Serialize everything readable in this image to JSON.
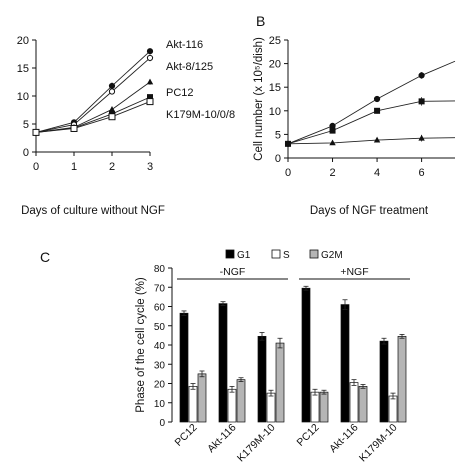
{
  "panels": {
    "a": {
      "letter": ""
    },
    "b": {
      "letter": "B"
    },
    "c": {
      "letter": "C"
    }
  },
  "chart_data": [
    {
      "type": "line",
      "panel": "A",
      "xlabel": "Days of culture without NGF",
      "ylabel": "",
      "x": [
        0,
        1,
        2,
        3
      ],
      "xlim": [
        0,
        3
      ],
      "ylim": [
        0,
        20
      ],
      "xticks": [
        "0",
        "1",
        "2",
        "3"
      ],
      "yticks": [
        "0",
        "5",
        "10",
        "15",
        "20"
      ],
      "series": [
        {
          "name": "Akt-116",
          "marker": "filled-circle",
          "values": [
            3.5,
            5.3,
            11.8,
            18.0
          ],
          "errors": [
            0.2,
            0.5,
            0.6,
            0.5
          ]
        },
        {
          "name": "Akt-8/125",
          "marker": "open-circle",
          "values": [
            3.5,
            4.9,
            10.8,
            16.8
          ],
          "errors": [
            0.2,
            0.4,
            0.5,
            0.6
          ]
        },
        {
          "name": "PC12",
          "marker": "filled-triangle",
          "values": [
            3.5,
            4.4,
            7.6,
            12.5
          ],
          "errors": [
            0.2,
            0.3,
            0.4,
            0.5
          ]
        },
        {
          "name": "K179M-10/0/8",
          "marker": "filled-square",
          "values": [
            3.5,
            4.3,
            6.8,
            9.8
          ],
          "errors": [
            0.2,
            0.3,
            0.4,
            0.4
          ]
        },
        {
          "name": "",
          "marker": "open-square",
          "values": [
            3.5,
            4.2,
            6.3,
            9.0
          ],
          "errors": [
            0.2,
            0.3,
            0.3,
            0.4
          ]
        }
      ]
    },
    {
      "type": "line",
      "panel": "B",
      "xlabel": "Days of NGF treatment",
      "ylabel": "Cell number (x 10⁵/dish)",
      "x": [
        0,
        2,
        4,
        6
      ],
      "xlim": [
        0,
        7.5
      ],
      "ylim": [
        0,
        25
      ],
      "xticks": [
        "0",
        "2",
        "4",
        "6"
      ],
      "yticks": [
        "0",
        "5",
        "10",
        "15",
        "20",
        "25"
      ],
      "series": [
        {
          "name": "",
          "marker": "filled-circle",
          "values": [
            3.0,
            6.8,
            12.5,
            17.5
          ],
          "errors": [
            0.2,
            0.5,
            0.6,
            0.7
          ],
          "trend_end": 20.5
        },
        {
          "name": "",
          "marker": "filled-square",
          "values": [
            3.0,
            5.8,
            10.0,
            12.0
          ],
          "errors": [
            0.2,
            0.4,
            0.6,
            0.9
          ],
          "trend_end": 12.1
        },
        {
          "name": "",
          "marker": "filled-triangle",
          "values": [
            3.0,
            3.2,
            3.8,
            4.2
          ],
          "errors": [
            0.2,
            0.3,
            0.5,
            0.7
          ],
          "trend_end": 4.3
        }
      ]
    },
    {
      "type": "bar",
      "panel": "C",
      "ylabel": "Phase of the cell cycle (%)",
      "ylim": [
        0,
        80
      ],
      "yticks": [
        "0",
        "10",
        "20",
        "30",
        "40",
        "50",
        "60",
        "70",
        "80"
      ],
      "legend": [
        "G1",
        "S",
        "G2M"
      ],
      "legend_placement": "top",
      "groups": [
        {
          "label": "-NGF",
          "categories": [
            "PC12",
            "Akt-116",
            "K179M-10"
          ]
        },
        {
          "label": "+NGF",
          "categories": [
            "PC12",
            "Akt-116",
            "K179M-10"
          ]
        }
      ],
      "series": [
        {
          "name": "G1",
          "fill": "#000000",
          "values": [
            56.5,
            61.5,
            44.5,
            69.5,
            61.0,
            42.0
          ],
          "errors": [
            1.2,
            1.0,
            2.0,
            1.0,
            2.5,
            1.5
          ]
        },
        {
          "name": "S",
          "fill": "#ffffff",
          "values": [
            18.5,
            17.0,
            15.0,
            15.5,
            20.5,
            13.5
          ],
          "errors": [
            1.5,
            1.5,
            1.5,
            1.5,
            1.5,
            1.5
          ]
        },
        {
          "name": "G2M",
          "fill": "#b5b5b5",
          "values": [
            25.0,
            22.0,
            41.0,
            15.5,
            18.5,
            44.5
          ],
          "errors": [
            1.5,
            1.0,
            2.5,
            1.0,
            1.0,
            1.0
          ]
        }
      ]
    }
  ]
}
